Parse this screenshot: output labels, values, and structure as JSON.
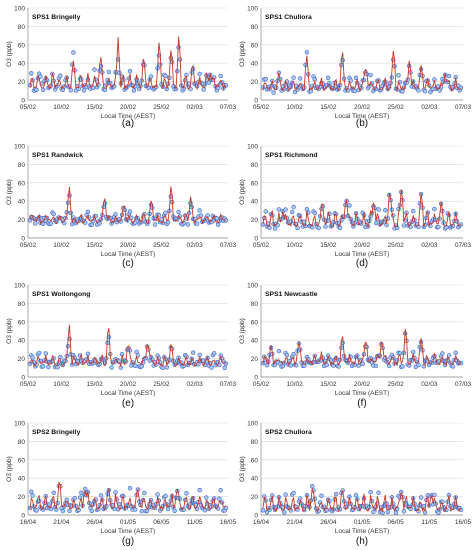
{
  "figure": {
    "series_colors": {
      "obs": "#3a5fcd",
      "obs_fill": "#a9c8ec",
      "model": "#c0392b"
    }
  },
  "chart_data": [
    {
      "type": "line",
      "title": "SPS1 Bringelly",
      "panel_label": "(a)",
      "ylabel": "O3 (ppb)",
      "xlabel": "Local Time (AEST)",
      "ylim": [
        0,
        100
      ],
      "yticks": [
        0,
        20,
        40,
        60,
        80,
        100
      ],
      "xticks": [
        "05/02",
        "10/02",
        "15/02",
        "20/02",
        "25/02",
        "02/03",
        "07/03"
      ],
      "grid": true,
      "peaks_model": [
        [
          0.05,
          18
        ],
        [
          0.22,
          45
        ],
        [
          0.36,
          52
        ],
        [
          0.45,
          70
        ],
        [
          0.58,
          50
        ],
        [
          0.66,
          72
        ],
        [
          0.72,
          60
        ],
        [
          0.76,
          75
        ],
        [
          0.83,
          40
        ],
        [
          0.92,
          30
        ]
      ],
      "peaks_obs": [
        [
          0.05,
          30
        ],
        [
          0.22,
          55
        ],
        [
          0.36,
          40
        ],
        [
          0.45,
          45
        ],
        [
          0.58,
          45
        ],
        [
          0.66,
          55
        ],
        [
          0.72,
          50
        ],
        [
          0.76,
          62
        ],
        [
          0.83,
          35
        ],
        [
          0.92,
          28
        ]
      ],
      "base": 14,
      "amp": 14,
      "seed": 1
    },
    {
      "type": "line",
      "title": "SPS1 Chullora",
      "panel_label": "(b)",
      "ylabel": "O3 (ppb)",
      "xlabel": "Local Time (AEST)",
      "ylim": [
        0,
        100
      ],
      "yticks": [
        0,
        20,
        40,
        60,
        80,
        100
      ],
      "xticks": [
        "05/02",
        "10/02",
        "15/02",
        "20/02",
        "25/02",
        "02/03",
        "07/03"
      ],
      "grid": true,
      "peaks_model": [
        [
          0.08,
          30
        ],
        [
          0.22,
          52
        ],
        [
          0.4,
          60
        ],
        [
          0.52,
          40
        ],
        [
          0.66,
          62
        ],
        [
          0.74,
          48
        ],
        [
          0.8,
          40
        ],
        [
          0.92,
          30
        ]
      ],
      "peaks_obs": [
        [
          0.08,
          30
        ],
        [
          0.22,
          55
        ],
        [
          0.4,
          48
        ],
        [
          0.52,
          35
        ],
        [
          0.66,
          50
        ],
        [
          0.74,
          42
        ],
        [
          0.8,
          35
        ],
        [
          0.92,
          28
        ]
      ],
      "base": 12,
      "amp": 12,
      "seed": 2
    },
    {
      "type": "line",
      "title": "SPS1 Randwick",
      "panel_label": "(c)",
      "ylabel": "O3 (ppb)",
      "xlabel": "Local Time (AEST)",
      "ylim": [
        0,
        100
      ],
      "yticks": [
        0,
        20,
        40,
        60,
        80,
        100
      ],
      "xticks": [
        "05/02",
        "10/02",
        "15/02",
        "20/02",
        "25/02",
        "02/03",
        "07/03"
      ],
      "grid": true,
      "peaks_model": [
        [
          0.2,
          60
        ],
        [
          0.38,
          50
        ],
        [
          0.48,
          40
        ],
        [
          0.62,
          45
        ],
        [
          0.72,
          62
        ],
        [
          0.82,
          48
        ]
      ],
      "peaks_obs": [
        [
          0.2,
          50
        ],
        [
          0.38,
          42
        ],
        [
          0.48,
          35
        ],
        [
          0.62,
          40
        ],
        [
          0.72,
          50
        ],
        [
          0.82,
          40
        ]
      ],
      "base": 18,
      "amp": 8,
      "seed": 3
    },
    {
      "type": "line",
      "title": "SPS1 Richmond",
      "panel_label": "(d)",
      "ylabel": "O3 (ppb)",
      "xlabel": "Local Time (AEST)",
      "ylim": [
        0,
        100
      ],
      "yticks": [
        0,
        20,
        40,
        60,
        80,
        100
      ],
      "xticks": [
        "05/02",
        "10/02",
        "15/02",
        "20/02",
        "25/02",
        "02/03",
        "07/03"
      ],
      "grid": true,
      "peaks_model": [
        [
          0.1,
          30
        ],
        [
          0.3,
          40
        ],
        [
          0.42,
          50
        ],
        [
          0.56,
          45
        ],
        [
          0.64,
          58
        ],
        [
          0.7,
          60
        ],
        [
          0.8,
          52
        ],
        [
          0.9,
          40
        ]
      ],
      "peaks_obs": [
        [
          0.1,
          30
        ],
        [
          0.3,
          38
        ],
        [
          0.42,
          48
        ],
        [
          0.56,
          42
        ],
        [
          0.64,
          55
        ],
        [
          0.7,
          58
        ],
        [
          0.8,
          50
        ],
        [
          0.9,
          38
        ]
      ],
      "base": 14,
      "amp": 16,
      "seed": 4
    },
    {
      "type": "line",
      "title": "SPS1 Wollongong",
      "panel_label": "(e)",
      "ylabel": "O3 (ppb)",
      "xlabel": "Local Time (AEST)",
      "ylim": [
        0,
        100
      ],
      "yticks": [
        0,
        20,
        40,
        60,
        80,
        100
      ],
      "xticks": [
        "05/02",
        "10/02",
        "15/02",
        "20/02",
        "25/02",
        "02/03",
        "07/03"
      ],
      "grid": true,
      "peaks_model": [
        [
          0.2,
          62
        ],
        [
          0.4,
          62
        ],
        [
          0.5,
          40
        ],
        [
          0.6,
          42
        ],
        [
          0.72,
          38
        ]
      ],
      "peaks_obs": [
        [
          0.2,
          45
        ],
        [
          0.4,
          48
        ],
        [
          0.5,
          35
        ],
        [
          0.6,
          38
        ],
        [
          0.72,
          34
        ]
      ],
      "base": 14,
      "amp": 10,
      "seed": 5
    },
    {
      "type": "line",
      "title": "SPS1  Newcastle",
      "panel_label": "(f)",
      "ylabel": "O3 (ppb)",
      "xlabel": "Local Time (AEST)",
      "ylim": [
        0,
        100
      ],
      "yticks": [
        0,
        20,
        40,
        60,
        80,
        100
      ],
      "xticks": [
        "05/02",
        "10/02",
        "15/02",
        "20/02",
        "25/02",
        "02/03",
        "07/03"
      ],
      "grid": true,
      "peaks_model": [
        [
          0.04,
          35
        ],
        [
          0.18,
          40
        ],
        [
          0.4,
          50
        ],
        [
          0.52,
          45
        ],
        [
          0.6,
          45
        ],
        [
          0.72,
          58
        ],
        [
          0.8,
          45
        ]
      ],
      "peaks_obs": [
        [
          0.04,
          32
        ],
        [
          0.18,
          38
        ],
        [
          0.4,
          40
        ],
        [
          0.52,
          40
        ],
        [
          0.6,
          42
        ],
        [
          0.72,
          52
        ],
        [
          0.8,
          40
        ]
      ],
      "base": 15,
      "amp": 10,
      "seed": 6
    },
    {
      "type": "line",
      "title": "SPS2  Bringelly",
      "panel_label": "(g)",
      "ylabel": "O3 (ppb)",
      "xlabel": "Local Time (AEST)",
      "ylim": [
        0,
        100
      ],
      "yticks": [
        0,
        20,
        40,
        60,
        80,
        100
      ],
      "xticks": [
        "16/04",
        "21/04",
        "26/04",
        "01/05",
        "06/05",
        "11/05",
        "16/05"
      ],
      "grid": true,
      "peaks_model": [
        [
          0.15,
          40
        ],
        [
          0.28,
          30
        ],
        [
          0.4,
          30
        ],
        [
          0.55,
          28
        ],
        [
          0.75,
          30
        ]
      ],
      "peaks_obs": [
        [
          0.15,
          35
        ],
        [
          0.28,
          32
        ],
        [
          0.4,
          30
        ],
        [
          0.55,
          28
        ],
        [
          0.75,
          28
        ]
      ],
      "base": 8,
      "amp": 16,
      "seed": 7
    },
    {
      "type": "line",
      "title": "SPS2  Chullora",
      "panel_label": "(h)",
      "ylabel": "O3 (ppb)",
      "xlabel": "Local Time (AEST)",
      "ylim": [
        0,
        100
      ],
      "yticks": [
        0,
        20,
        40,
        60,
        80,
        100
      ],
      "xticks": [
        "16/04",
        "21/04",
        "26/04",
        "01/05",
        "06/05",
        "11/05",
        "16/05"
      ],
      "grid": true,
      "peaks_model": [
        [
          0.25,
          32
        ],
        [
          0.4,
          28
        ],
        [
          0.7,
          28
        ],
        [
          0.85,
          25
        ]
      ],
      "peaks_obs": [
        [
          0.25,
          35
        ],
        [
          0.4,
          30
        ],
        [
          0.7,
          28
        ],
        [
          0.85,
          26
        ]
      ],
      "base": 6,
      "amp": 16,
      "seed": 8
    }
  ]
}
